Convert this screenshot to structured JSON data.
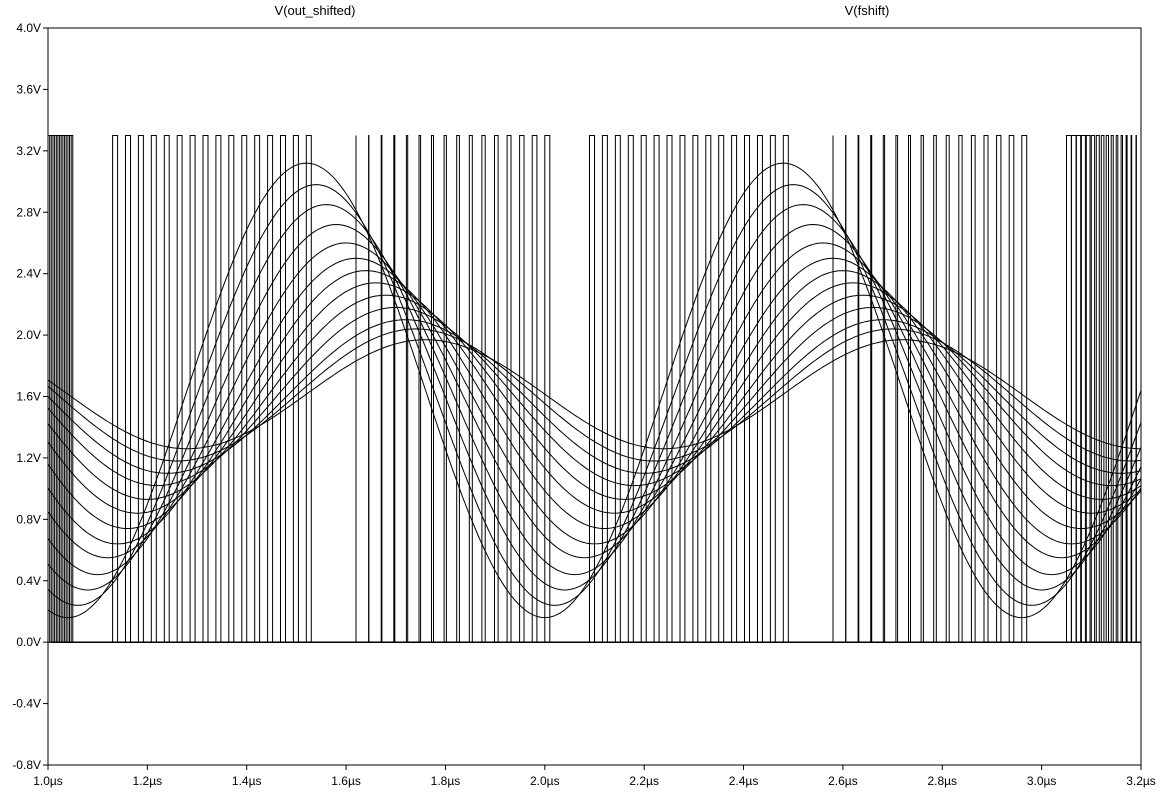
{
  "chart_data": {
    "type": "line",
    "title": "",
    "xlabel": "",
    "ylabel": "",
    "xlim": [
      1.0,
      3.2
    ],
    "ylim": [
      -0.8,
      4.0
    ],
    "x_unit": "µs",
    "y_unit": "V",
    "grid": false,
    "x_ticks": [
      "1.0µs",
      "1.2µs",
      "1.4µs",
      "1.6µs",
      "1.8µs",
      "2.0µs",
      "2.2µs",
      "2.4µs",
      "2.6µs",
      "2.8µs",
      "3.0µs",
      "3.2µs"
    ],
    "y_ticks": [
      "4.0V",
      "3.6V",
      "3.2V",
      "2.8V",
      "2.4V",
      "2.0V",
      "1.6V",
      "1.2V",
      "0.8V",
      "0.4V",
      "0.0V",
      "-0.4V",
      "-0.8V"
    ],
    "series": [
      {
        "name": "V(out_shifted)",
        "kind": "sinusoid-family",
        "period_us": 0.96,
        "peak_time_us": [
          1.52,
          1.54,
          1.56,
          1.58,
          1.6,
          1.62,
          1.64,
          1.66,
          1.68,
          1.7,
          1.72,
          1.74,
          1.76
        ],
        "peak_V": [
          3.12,
          2.98,
          2.85,
          2.72,
          2.6,
          2.5,
          2.42,
          2.34,
          2.26,
          2.18,
          2.1,
          2.04,
          1.97
        ],
        "trough_V": [
          0.16,
          0.24,
          0.34,
          0.44,
          0.55,
          0.64,
          0.74,
          0.84,
          0.93,
          1.02,
          1.1,
          1.18,
          1.26
        ]
      },
      {
        "name": "V(fshift)",
        "kind": "square-wave-family",
        "high_V": 3.3,
        "low_V": 0.0,
        "rising_edges_us": [
          [
            1.0,
            1.05
          ],
          [
            1.13,
            1.52
          ],
          [
            1.62,
            2.0
          ],
          [
            2.09,
            2.48
          ],
          [
            2.58,
            2.96
          ],
          [
            3.05,
            3.2
          ]
        ],
        "falling_edges_us": [
          [
            1.0,
            1.05
          ],
          [
            1.14,
            1.53
          ],
          [
            1.62,
            2.01
          ],
          [
            2.1,
            2.49
          ],
          [
            2.58,
            2.97
          ],
          [
            3.06,
            3.2
          ]
        ],
        "edges_per_group": 16
      }
    ]
  },
  "trace_labels": {
    "left": "V(out_shifted)",
    "right": "V(fshift)"
  }
}
